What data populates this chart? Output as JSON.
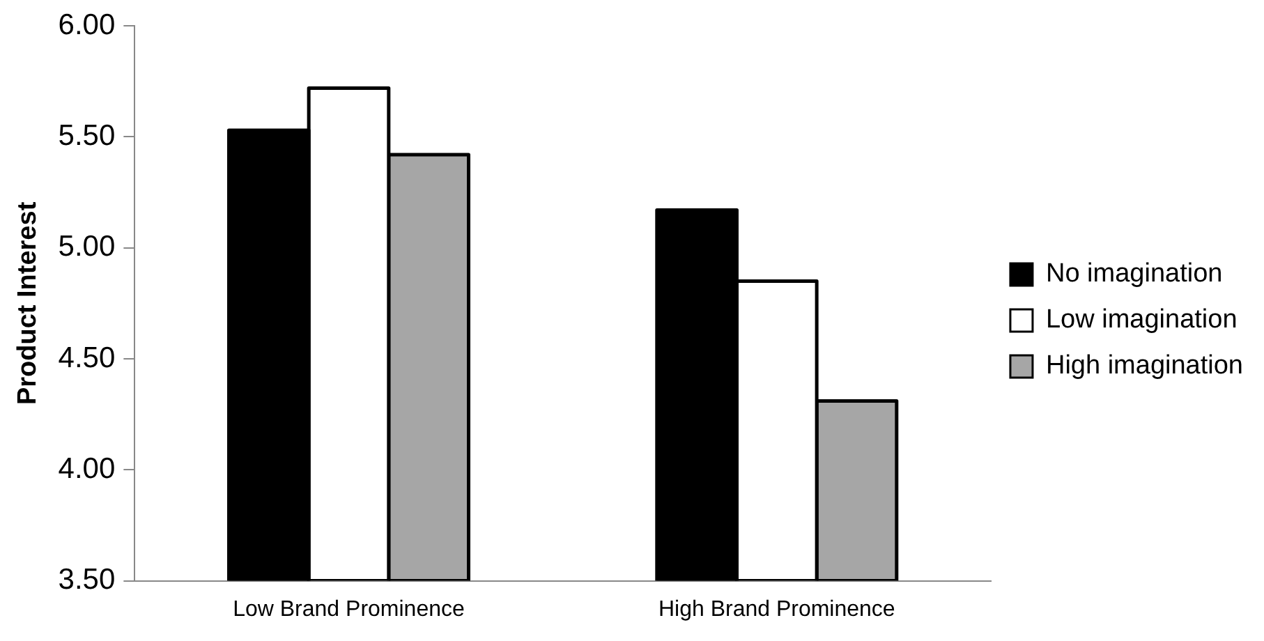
{
  "chart_data": {
    "type": "bar",
    "ylabel": "Product Interest",
    "categories": [
      "Low Brand Prominence",
      "High Brand Prominence"
    ],
    "series": [
      {
        "name": "No imagination",
        "color": "#000000",
        "values": [
          5.53,
          5.17
        ]
      },
      {
        "name": "Low imagination",
        "color": "#ffffff",
        "values": [
          5.72,
          4.85
        ]
      },
      {
        "name": "High imagination",
        "color": "#a6a6a6",
        "values": [
          5.42,
          4.31
        ]
      }
    ],
    "ylim": [
      3.5,
      6
    ],
    "yticks": [
      {
        "value": 3.5,
        "label": "3.50"
      },
      {
        "value": 4,
        "label": "4.00"
      },
      {
        "value": 4.5,
        "label": "4.50"
      },
      {
        "value": 5,
        "label": "5.00"
      },
      {
        "value": 5.5,
        "label": "5.50"
      },
      {
        "value": 6,
        "label": "6.00"
      }
    ],
    "grid": false,
    "legend": "right"
  }
}
